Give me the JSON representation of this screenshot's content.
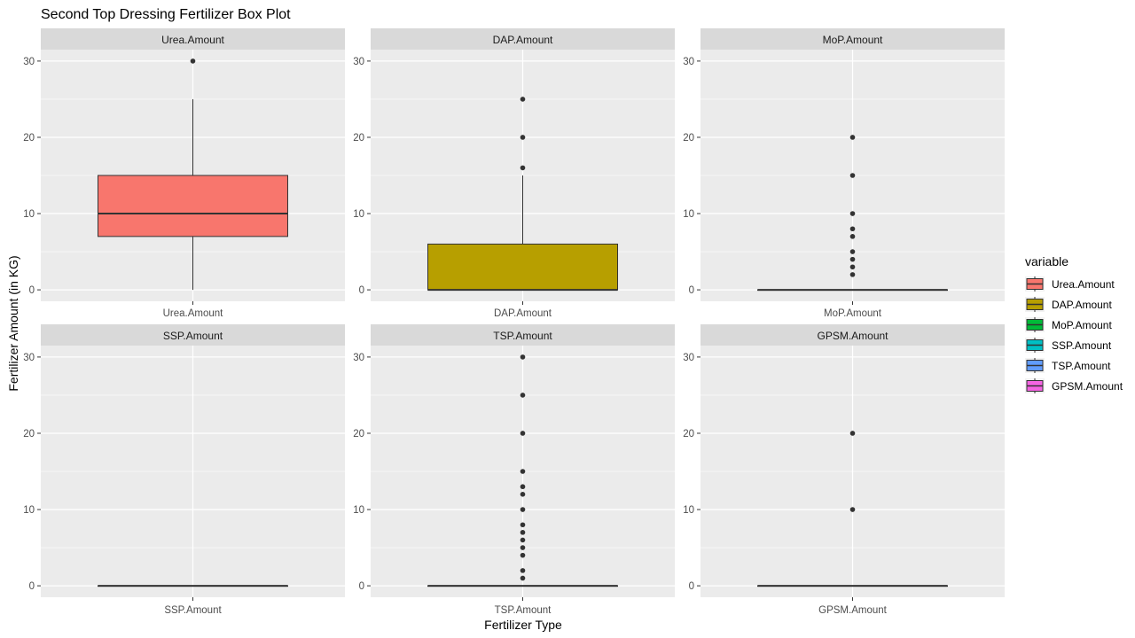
{
  "chart_data": {
    "type": "box",
    "title": "Second Top Dressing Fertilizer Box Plot",
    "xlabel": "Fertilizer Type",
    "ylabel": "Fertilizer Amount (in KG)",
    "ylim": [
      -1.5,
      31.5
    ],
    "yticks": [
      0,
      10,
      20,
      30
    ],
    "grid": true,
    "layout": "2x3 facets",
    "legend": {
      "title": "variable",
      "position": "right",
      "entries": [
        "Urea.Amount",
        "DAP.Amount",
        "MoP.Amount",
        "SSP.Amount",
        "TSP.Amount",
        "GPSM.Amount"
      ]
    },
    "facets": [
      {
        "name": "Urea.Amount",
        "xtick": "Urea.Amount",
        "color": "#F8766D",
        "min": 0,
        "q1": 7,
        "median": 10,
        "q3": 15,
        "max": 25,
        "outliers": [
          30
        ]
      },
      {
        "name": "DAP.Amount",
        "xtick": "DAP.Amount",
        "color": "#B79F00",
        "min": 0,
        "q1": 0,
        "median": 0,
        "q3": 6,
        "max": 15,
        "outliers": [
          16,
          20,
          25
        ]
      },
      {
        "name": "MoP.Amount",
        "xtick": "MoP.Amount",
        "color": "#00BA38",
        "min": 0,
        "q1": 0,
        "median": 0,
        "q3": 0,
        "max": 0,
        "outliers": [
          2,
          3,
          4,
          5,
          7,
          8,
          10,
          15,
          20
        ]
      },
      {
        "name": "SSP.Amount",
        "xtick": "SSP.Amount",
        "color": "#00BFC4",
        "min": 0,
        "q1": 0,
        "median": 0,
        "q3": 0,
        "max": 0,
        "outliers": []
      },
      {
        "name": "TSP.Amount",
        "xtick": "TSP.Amount",
        "color": "#619CFF",
        "min": 0,
        "q1": 0,
        "median": 0,
        "q3": 0,
        "max": 0,
        "outliers": [
          1,
          2,
          4,
          5,
          6,
          7,
          8,
          10,
          12,
          13,
          15,
          20,
          25,
          30
        ]
      },
      {
        "name": "GPSM.Amount",
        "xtick": "GPSM.Amount",
        "color": "#F564E3",
        "min": 0,
        "q1": 0,
        "median": 0,
        "q3": 0,
        "max": 0,
        "outliers": [
          10,
          20
        ]
      }
    ]
  }
}
